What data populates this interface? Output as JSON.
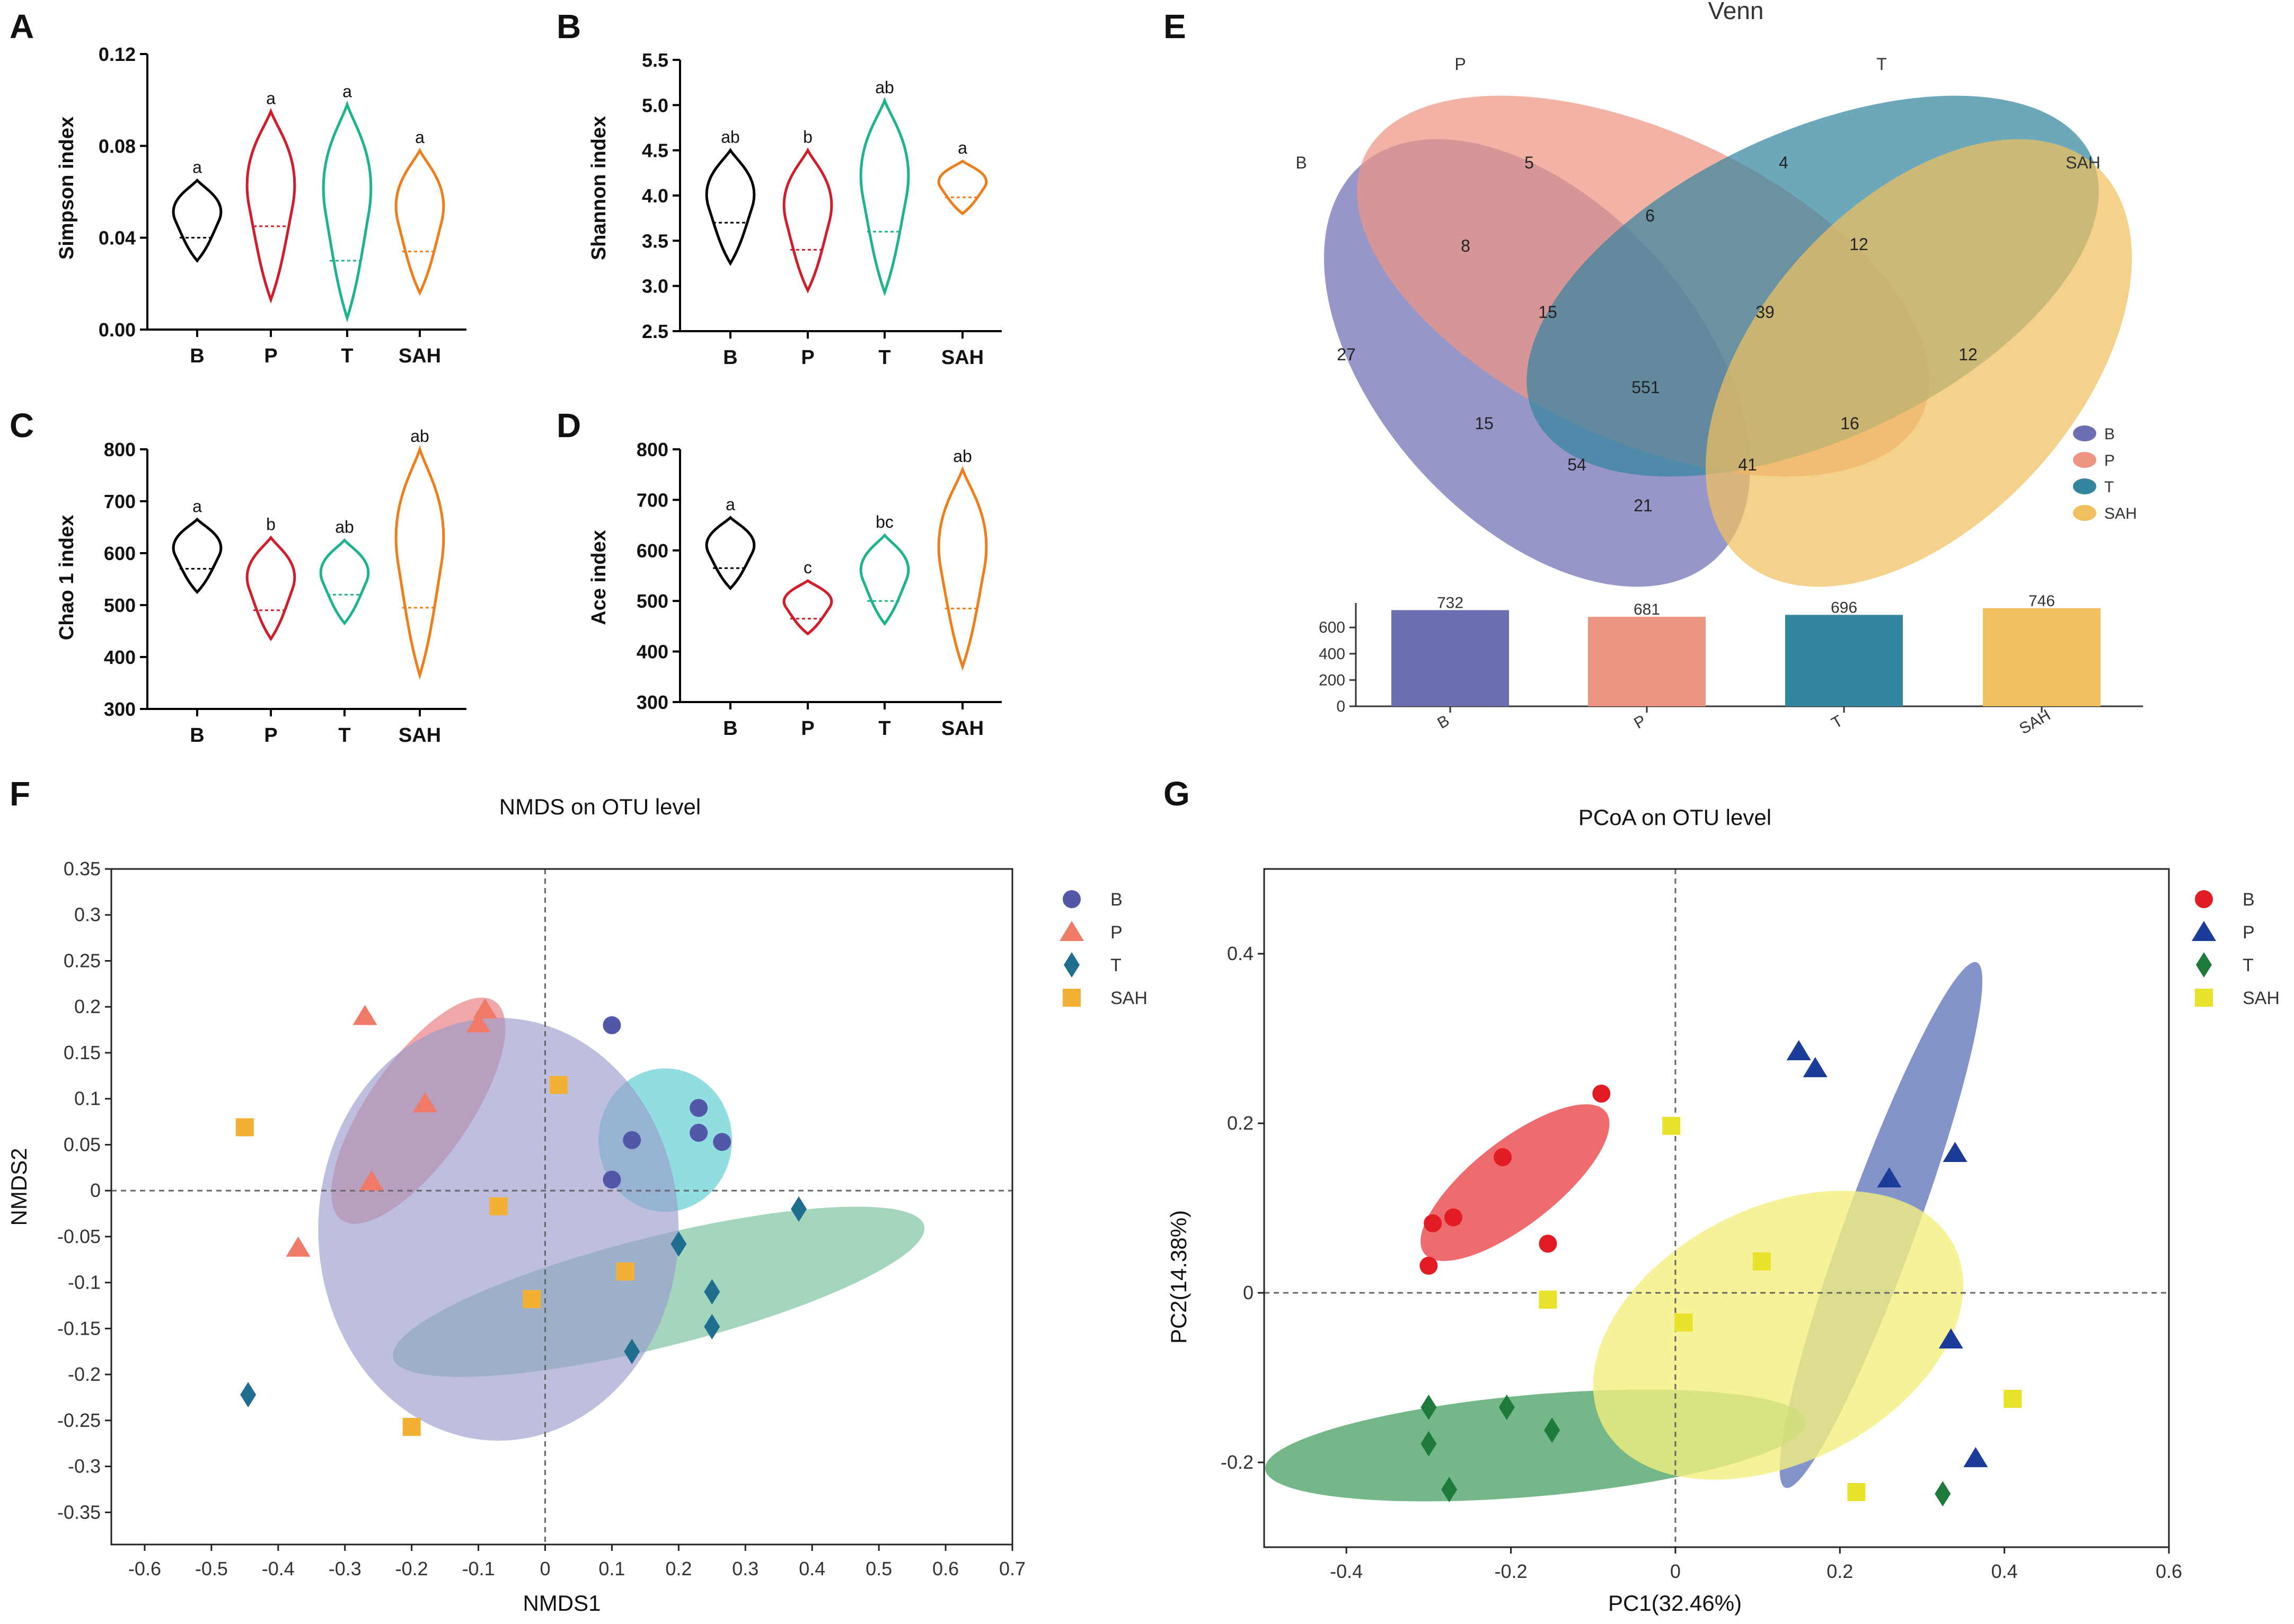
{
  "chart_data": [
    {
      "panel": "A",
      "type": "violin",
      "ylabel": "Simpson index",
      "ylim": [
        0,
        0.12
      ],
      "yticks": [
        "0.00",
        "0.04",
        "0.08",
        "0.12"
      ],
      "tick_values": [
        0,
        0.04,
        0.08,
        0.12
      ],
      "groups": [
        {
          "name": "B",
          "color": "#000000",
          "min": 0.03,
          "max": 0.065,
          "median": 0.04,
          "sig": "a"
        },
        {
          "name": "P",
          "color": "#d11c2a",
          "min": 0.013,
          "max": 0.095,
          "median": 0.045,
          "sig": "a"
        },
        {
          "name": "T",
          "color": "#1db38f",
          "min": 0.005,
          "max": 0.098,
          "median": 0.03,
          "sig": "a"
        },
        {
          "name": "SAH",
          "color": "#ee7d1c",
          "min": 0.016,
          "max": 0.078,
          "median": 0.034,
          "sig": "a"
        }
      ]
    },
    {
      "panel": "B",
      "type": "violin",
      "ylabel": "Shannon index",
      "ylim": [
        2.5,
        5.5
      ],
      "yticks": [
        "2.5",
        "3.0",
        "3.5",
        "4.0",
        "4.5",
        "5.0",
        "5.5"
      ],
      "tick_values": [
        2.5,
        3.0,
        3.5,
        4.0,
        4.5,
        5.0,
        5.5
      ],
      "groups": [
        {
          "name": "B",
          "color": "#000000",
          "min": 3.25,
          "max": 4.5,
          "median": 3.7,
          "sig": "ab"
        },
        {
          "name": "P",
          "color": "#d11c2a",
          "min": 2.95,
          "max": 4.5,
          "median": 3.4,
          "sig": "b"
        },
        {
          "name": "T",
          "color": "#1db38f",
          "min": 2.93,
          "max": 5.05,
          "median": 3.6,
          "sig": "ab"
        },
        {
          "name": "SAH",
          "color": "#ee7d1c",
          "min": 3.8,
          "max": 4.38,
          "median": 3.98,
          "sig": "a"
        }
      ]
    },
    {
      "panel": "C",
      "type": "violin",
      "ylabel": "Chao 1 index",
      "ylim": [
        300,
        800
      ],
      "yticks": [
        "300",
        "400",
        "500",
        "600",
        "700",
        "800"
      ],
      "tick_values": [
        300,
        400,
        500,
        600,
        700,
        800
      ],
      "groups": [
        {
          "name": "B",
          "color": "#000000",
          "min": 525,
          "max": 665,
          "median": 570,
          "sig": "a"
        },
        {
          "name": "P",
          "color": "#d11c2a",
          "min": 435,
          "max": 630,
          "median": 490,
          "sig": "b"
        },
        {
          "name": "T",
          "color": "#1db38f",
          "min": 465,
          "max": 625,
          "median": 520,
          "sig": "ab"
        },
        {
          "name": "SAH",
          "color": "#ee7d1c",
          "min": 365,
          "max": 800,
          "median": 495,
          "sig": "ab"
        }
      ]
    },
    {
      "panel": "D",
      "type": "violin",
      "ylabel": "Ace index",
      "ylim": [
        300,
        800
      ],
      "yticks": [
        "300",
        "400",
        "500",
        "600",
        "700",
        "800"
      ],
      "tick_values": [
        300,
        400,
        500,
        600,
        700,
        800
      ],
      "groups": [
        {
          "name": "B",
          "color": "#000000",
          "min": 525,
          "max": 665,
          "median": 565,
          "sig": "a"
        },
        {
          "name": "P",
          "color": "#d11c2a",
          "min": 435,
          "max": 540,
          "median": 465,
          "sig": "c"
        },
        {
          "name": "T",
          "color": "#1db38f",
          "min": 455,
          "max": 630,
          "median": 500,
          "sig": "bc"
        },
        {
          "name": "SAH",
          "color": "#ee7d1c",
          "min": 370,
          "max": 760,
          "median": 485,
          "sig": "ab"
        }
      ]
    },
    {
      "panel": "E",
      "type": "venn",
      "title": "Venn",
      "sets": [
        {
          "name": "B",
          "color": "#6e6fb3"
        },
        {
          "name": "P",
          "color": "#ee9483"
        },
        {
          "name": "T",
          "color": "#34859f"
        },
        {
          "name": "SAH",
          "color": "#f0c05e"
        }
      ],
      "regions": [
        {
          "sets": [
            "B"
          ],
          "value": "27"
        },
        {
          "sets": [
            "P"
          ],
          "value": "5"
        },
        {
          "sets": [
            "T"
          ],
          "value": "4"
        },
        {
          "sets": [
            "SAH"
          ],
          "value": "12"
        },
        {
          "sets": [
            "B",
            "P"
          ],
          "value": "8"
        },
        {
          "sets": [
            "P",
            "T"
          ],
          "value": "6"
        },
        {
          "sets": [
            "T",
            "SAH"
          ],
          "value": "12"
        },
        {
          "sets": [
            "B",
            "SAH"
          ],
          "value": "21"
        },
        {
          "sets": [
            "B",
            "T"
          ],
          "value": "15"
        },
        {
          "sets": [
            "P",
            "SAH"
          ],
          "value": "16"
        },
        {
          "sets": [
            "B",
            "P",
            "T"
          ],
          "value": "15"
        },
        {
          "sets": [
            "P",
            "T",
            "SAH"
          ],
          "value": "39"
        },
        {
          "sets": [
            "B",
            "T",
            "SAH"
          ],
          "value": "54"
        },
        {
          "sets": [
            "B",
            "P",
            "SAH"
          ],
          "value": "41"
        },
        {
          "sets": [
            "B",
            "P",
            "T",
            "SAH"
          ],
          "value": "551"
        }
      ],
      "bar": {
        "type": "bar",
        "categories": [
          "B",
          "P",
          "T",
          "SAH"
        ],
        "values": [
          732,
          681,
          696,
          746
        ],
        "ylim": [
          0,
          746
        ],
        "yticks": [
          "0",
          "200",
          "400",
          "600"
        ],
        "tick_values": [
          0,
          200,
          400,
          600
        ]
      }
    },
    {
      "panel": "F",
      "type": "scatter",
      "title": "NMDS on OTU level",
      "xlabel": "NMDS1",
      "ylabel": "NMDS2",
      "xlim": [
        -0.65,
        0.7
      ],
      "ylim": [
        -0.385,
        0.35
      ],
      "xticks": [
        "-0.6",
        "-0.5",
        "-0.4",
        "-0.3",
        "-0.2",
        "-0.1",
        "0",
        "0.1",
        "0.2",
        "0.3",
        "0.4",
        "0.5",
        "0.6",
        "0.7"
      ],
      "xtick_values": [
        -0.6,
        -0.5,
        -0.4,
        -0.3,
        -0.2,
        -0.1,
        0,
        0.1,
        0.2,
        0.3,
        0.4,
        0.5,
        0.6,
        0.7
      ],
      "yticks": [
        "0.35",
        "0.3",
        "0.25",
        "0.2",
        "0.15",
        "0.1",
        "0.05",
        "0",
        "-0.05",
        "-0.1",
        "-0.15",
        "-0.2",
        "-0.25",
        "-0.3",
        "-0.35"
      ],
      "ytick_values": [
        0.35,
        0.3,
        0.25,
        0.2,
        0.15,
        0.1,
        0.05,
        0,
        -0.05,
        -0.1,
        -0.15,
        -0.2,
        -0.25,
        -0.3,
        -0.35
      ],
      "series": [
        {
          "name": "B",
          "color": "#5257a8",
          "marker": "circle",
          "points": [
            [
              0.1,
              0.18
            ],
            [
              0.13,
              0.055
            ],
            [
              0.23,
              0.09
            ],
            [
              0.23,
              0.063
            ],
            [
              0.265,
              0.053
            ],
            [
              0.1,
              0.012
            ]
          ],
          "ellipse": {
            "cx": 0.18,
            "cy": 0.055,
            "rx": 0.1,
            "ry": 0.078,
            "angle": 0,
            "color": "#7ed8db",
            "opacity": 0.85
          }
        },
        {
          "name": "P",
          "color": "#f07a68",
          "marker": "triangle",
          "points": [
            [
              -0.27,
              0.19
            ],
            [
              -0.09,
              0.197
            ],
            [
              -0.1,
              0.182
            ],
            [
              -0.18,
              0.095
            ],
            [
              -0.26,
              0.01
            ],
            [
              -0.37,
              -0.062
            ]
          ],
          "ellipse": {
            "cx": -0.19,
            "cy": 0.087,
            "rx": 0.2,
            "ry": 0.055,
            "angle": -55,
            "color": "#eb8a8a",
            "opacity": 0.75
          }
        },
        {
          "name": "T",
          "color": "#1f6e8f",
          "marker": "diamond",
          "points": [
            [
              0.38,
              -0.02
            ],
            [
              0.2,
              -0.058
            ],
            [
              0.25,
              -0.11
            ],
            [
              0.25,
              -0.148
            ],
            [
              0.13,
              -0.175
            ],
            [
              -0.445,
              -0.222
            ]
          ],
          "ellipse": {
            "cx": 0.17,
            "cy": -0.11,
            "rx": 0.41,
            "ry": 0.06,
            "angle": -14,
            "color": "#7cc49f",
            "opacity": 0.7
          }
        },
        {
          "name": "SAH",
          "color": "#f2b134",
          "marker": "square",
          "points": [
            [
              0.02,
              0.115
            ],
            [
              -0.45,
              0.069
            ],
            [
              -0.07,
              -0.017
            ],
            [
              0.12,
              -0.088
            ],
            [
              -0.02,
              -0.118
            ],
            [
              -0.2,
              -0.257
            ]
          ],
          "ellipse": {
            "cx": -0.07,
            "cy": -0.042,
            "rx": 0.27,
            "ry": 0.23,
            "angle": 0,
            "color": "#9b9bcc",
            "opacity": 0.65
          }
        }
      ]
    },
    {
      "panel": "G",
      "type": "scatter",
      "title": "PCoA on OTU level",
      "xlabel": "PC1(32.46%)",
      "ylabel": "PC2(14.38%)",
      "xlim": [
        -0.5,
        0.6
      ],
      "ylim": [
        -0.3,
        0.5
      ],
      "xticks": [
        "-0.4",
        "-0.2",
        "0",
        "0.2",
        "0.4",
        "0.6"
      ],
      "xtick_values": [
        -0.4,
        -0.2,
        0,
        0.2,
        0.4,
        0.6
      ],
      "yticks": [
        "0.4",
        "0.2",
        "0",
        "-0.2"
      ],
      "ytick_values": [
        0.4,
        0.2,
        0,
        -0.2
      ],
      "series": [
        {
          "name": "B",
          "color": "#e11d23",
          "marker": "circle",
          "points": [
            [
              -0.09,
              0.235
            ],
            [
              -0.21,
              0.16
            ],
            [
              -0.295,
              0.082
            ],
            [
              -0.27,
              0.089
            ],
            [
              -0.155,
              0.058
            ],
            [
              -0.3,
              0.032
            ]
          ],
          "ellipse": {
            "cx": -0.195,
            "cy": 0.13,
            "rx": 0.14,
            "ry": 0.05,
            "angle": -38,
            "color": "#e8393e",
            "opacity": 0.75
          }
        },
        {
          "name": "P",
          "color": "#1c3c99",
          "marker": "triangle",
          "points": [
            [
              0.15,
              0.285
            ],
            [
              0.17,
              0.265
            ],
            [
              0.34,
              0.165
            ],
            [
              0.26,
              0.135
            ],
            [
              0.335,
              -0.055
            ],
            [
              0.365,
              -0.195
            ]
          ],
          "ellipse": {
            "cx": 0.25,
            "cy": 0.08,
            "rx": 0.34,
            "ry": 0.042,
            "angle": -70,
            "color": "#5a70b8",
            "opacity": 0.75
          }
        },
        {
          "name": "T",
          "color": "#1d7a3a",
          "marker": "diamond",
          "points": [
            [
              -0.3,
              -0.135
            ],
            [
              -0.205,
              -0.135
            ],
            [
              -0.15,
              -0.162
            ],
            [
              -0.3,
              -0.178
            ],
            [
              -0.275,
              -0.232
            ],
            [
              0.325,
              -0.237
            ]
          ],
          "ellipse": {
            "cx": -0.17,
            "cy": -0.18,
            "rx": 0.33,
            "ry": 0.06,
            "angle": -5,
            "color": "#3f9b5c",
            "opacity": 0.72
          }
        },
        {
          "name": "SAH",
          "color": "#e8e22b",
          "marker": "square",
          "points": [
            [
              -0.005,
              0.197
            ],
            [
              0.105,
              0.037
            ],
            [
              -0.155,
              -0.008
            ],
            [
              0.01,
              -0.035
            ],
            [
              0.41,
              -0.125
            ],
            [
              0.22,
              -0.235
            ]
          ],
          "ellipse": {
            "cx": 0.125,
            "cy": -0.05,
            "rx": 0.24,
            "ry": 0.15,
            "angle": -27,
            "color": "#f2ef7e",
            "opacity": 0.8
          }
        }
      ]
    }
  ]
}
